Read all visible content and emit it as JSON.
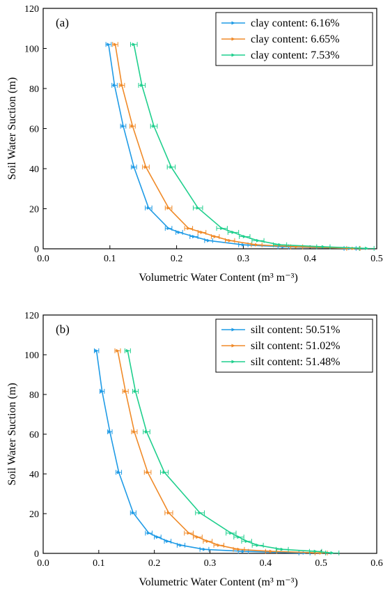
{
  "chart_data": [
    {
      "type": "line",
      "panel_label": "(a)",
      "xlabel": "Volumetric Water Content (m³ m⁻³)",
      "ylabel": "Soil Water Suction (m)",
      "xlim": [
        0,
        0.5
      ],
      "ylim": [
        0,
        120
      ],
      "xticks": [
        0.0,
        0.1,
        0.2,
        0.3,
        0.4,
        0.5
      ],
      "xtick_labels": [
        "0.0",
        "0.1",
        "0.2",
        "0.3",
        "0.4",
        "0.5"
      ],
      "yticks": [
        0,
        20,
        40,
        60,
        80,
        100,
        120
      ],
      "ytick_labels": [
        "0",
        "20",
        "40",
        "60",
        "80",
        "100",
        "120"
      ],
      "legend_position": "top-right",
      "grid": false,
      "error_bars": "horizontal",
      "series": [
        {
          "name": "clay content: 6.16%",
          "color": "#1f9be6",
          "x": [
            0.098,
            0.107,
            0.12,
            0.136,
            0.158,
            0.188,
            0.204,
            0.226,
            0.248,
            0.3,
            0.36,
            0.46
          ],
          "y": [
            102,
            81.6,
            61.2,
            40.8,
            20.4,
            10.2,
            8.2,
            6.1,
            4.1,
            2.0,
            1.0,
            0.2
          ],
          "err": [
            0.004,
            0.004,
            0.004,
            0.004,
            0.005,
            0.005,
            0.005,
            0.006,
            0.006,
            0.007,
            0.008,
            0.009
          ]
        },
        {
          "name": "clay content: 6.65%",
          "color": "#f08a28",
          "x": [
            0.108,
            0.118,
            0.134,
            0.154,
            0.188,
            0.218,
            0.238,
            0.258,
            0.28,
            0.32,
            0.38,
            0.465
          ],
          "y": [
            102,
            81.6,
            61.2,
            40.8,
            20.4,
            10.2,
            8.2,
            6.1,
            4.1,
            2.0,
            1.0,
            0.2
          ],
          "err": [
            0.004,
            0.004,
            0.004,
            0.005,
            0.005,
            0.006,
            0.006,
            0.006,
            0.007,
            0.008,
            0.009,
            0.01
          ]
        },
        {
          "name": "clay content: 7.53%",
          "color": "#1fcf8d",
          "x": [
            0.136,
            0.148,
            0.166,
            0.192,
            0.232,
            0.268,
            0.285,
            0.302,
            0.322,
            0.355,
            0.42,
            0.485
          ],
          "y": [
            102,
            81.6,
            61.2,
            40.8,
            20.4,
            10.2,
            8.2,
            6.1,
            4.1,
            2.0,
            1.0,
            0.2
          ],
          "err": [
            0.005,
            0.005,
            0.005,
            0.006,
            0.007,
            0.008,
            0.008,
            0.008,
            0.009,
            0.01,
            0.01,
            0.011
          ]
        }
      ]
    },
    {
      "type": "line",
      "panel_label": "(b)",
      "xlabel": "Volumetric Water Content (m³ m⁻³)",
      "ylabel": "Soil Water Suction (m)",
      "xlim": [
        0,
        0.6
      ],
      "ylim": [
        0,
        120
      ],
      "xticks": [
        0.0,
        0.1,
        0.2,
        0.3,
        0.4,
        0.5,
        0.6
      ],
      "xtick_labels": [
        "0.0",
        "0.1",
        "0.2",
        "0.3",
        "0.4",
        "0.5",
        "0.6"
      ],
      "yticks": [
        0,
        20,
        40,
        60,
        80,
        100,
        120
      ],
      "ytick_labels": [
        "0",
        "20",
        "40",
        "60",
        "80",
        "100",
        "120"
      ],
      "legend_position": "top-right",
      "grid": false,
      "error_bars": "horizontal",
      "series": [
        {
          "name": "silt content: 50.51%",
          "color": "#1f9be6",
          "x": [
            0.096,
            0.106,
            0.12,
            0.136,
            0.162,
            0.19,
            0.206,
            0.224,
            0.248,
            0.29,
            0.36,
            0.47
          ],
          "y": [
            102,
            81.6,
            61.2,
            40.8,
            20.4,
            10.2,
            8.2,
            6.1,
            4.1,
            2.0,
            1.0,
            0.2
          ],
          "err": [
            0.004,
            0.004,
            0.004,
            0.005,
            0.005,
            0.006,
            0.006,
            0.006,
            0.007,
            0.008,
            0.009,
            0.01
          ]
        },
        {
          "name": "silt content: 51.02%",
          "color": "#f08a28",
          "x": [
            0.134,
            0.148,
            0.164,
            0.188,
            0.226,
            0.262,
            0.278,
            0.296,
            0.316,
            0.352,
            0.41,
            0.5
          ],
          "y": [
            102,
            81.6,
            61.2,
            40.8,
            20.4,
            10.2,
            8.2,
            6.1,
            4.1,
            2.0,
            1.0,
            0.2
          ],
          "err": [
            0.005,
            0.005,
            0.005,
            0.006,
            0.007,
            0.008,
            0.008,
            0.008,
            0.009,
            0.01,
            0.01,
            0.011
          ]
        },
        {
          "name": "silt content: 51.48%",
          "color": "#1fcf8d",
          "x": [
            0.152,
            0.166,
            0.186,
            0.218,
            0.282,
            0.338,
            0.352,
            0.366,
            0.386,
            0.43,
            0.49,
            0.52
          ],
          "y": [
            102,
            81.6,
            61.2,
            40.8,
            20.4,
            10.2,
            8.2,
            6.1,
            4.1,
            2.0,
            1.0,
            0.2
          ],
          "err": [
            0.005,
            0.005,
            0.006,
            0.007,
            0.008,
            0.009,
            0.009,
            0.009,
            0.01,
            0.011,
            0.011,
            0.012
          ]
        }
      ]
    }
  ]
}
